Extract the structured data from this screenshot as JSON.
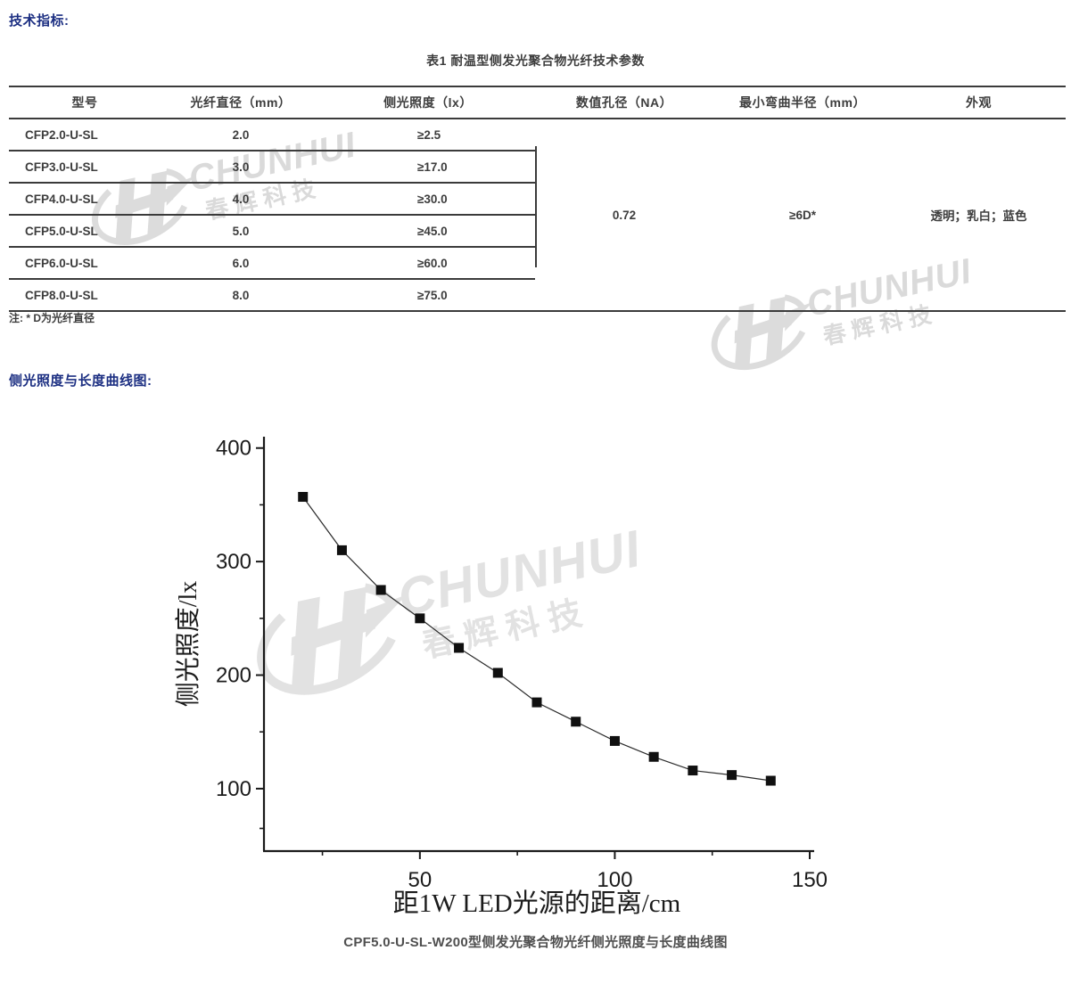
{
  "page": {
    "heading_specs": "技术指标:",
    "heading_curve": "侧光照度与长度曲线图:",
    "note": "注: * D为光纤直径",
    "caption": "CPF5.0-U-SL-W200型侧发光聚合物光纤侧光照度与长度曲线图",
    "accent_color": "#1c2f82",
    "text_color": "#3d3d3d"
  },
  "table": {
    "title": "表1  耐温型侧发光聚合物光纤技术参数",
    "headers": [
      "型号",
      "光纤直径（mm）",
      "侧光照度（lx）",
      "数值孔径（NA）",
      "最小弯曲半径（mm）",
      "外观"
    ],
    "rows": [
      [
        "CFP2.0-U-SL",
        "2.0",
        "≥2.5"
      ],
      [
        "CFP3.0-U-SL",
        "3.0",
        "≥17.0"
      ],
      [
        "CFP4.0-U-SL",
        "4.0",
        "≥30.0"
      ],
      [
        "CFP5.0-U-SL",
        "5.0",
        "≥45.0"
      ],
      [
        "CFP6.0-U-SL",
        "6.0",
        "≥60.0"
      ],
      [
        "CFP8.0-U-SL",
        "8.0",
        "≥75.0"
      ]
    ],
    "merged": {
      "numerical_aperture": "0.72",
      "min_bend_radius": "≥6D*",
      "appearance": "透明；乳白；蓝色"
    }
  },
  "watermark": {
    "brand": "CHUNHUI",
    "brand_cn": "春辉科技"
  },
  "chart_data": {
    "type": "scatter",
    "title": "",
    "x": [
      20,
      30,
      40,
      50,
      60,
      70,
      80,
      90,
      100,
      110,
      120,
      130,
      140
    ],
    "y": [
      357,
      310,
      275,
      250,
      224,
      202,
      176,
      159,
      142,
      128,
      116,
      112,
      107
    ],
    "series_name": "CPF5.0-U-SL-W200 侧光照度",
    "xlabel": "距1W LED光源的距离/cm",
    "ylabel": "侧光照度/lx",
    "xlim": [
      10,
      150
    ],
    "ylim": [
      45,
      410
    ],
    "x_ticks": [
      50,
      100,
      150
    ],
    "x_minor_ticks": [
      25,
      75,
      125
    ],
    "y_ticks": [
      100,
      200,
      300,
      400
    ],
    "y_minor_ticks": [
      65,
      150,
      250,
      350
    ],
    "marker": "square",
    "marker_color": "#101010",
    "line": true,
    "grid": false,
    "legend_position": "none"
  }
}
